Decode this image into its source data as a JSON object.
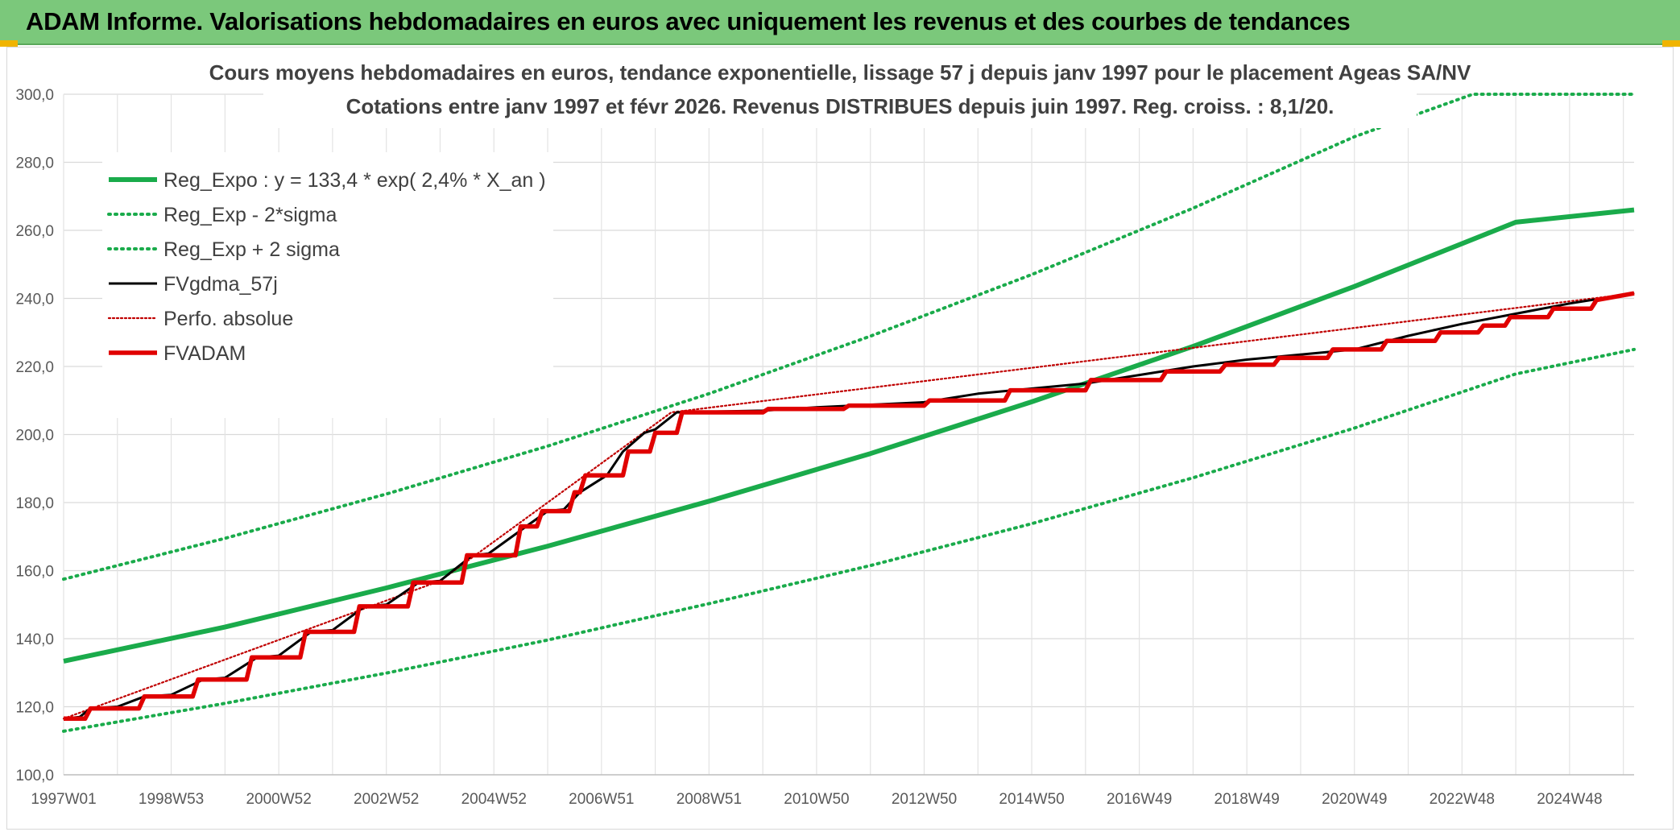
{
  "banner": {
    "title": "ADAM Informe. Valorisations hebdomadaires en euros avec uniquement les revenus et des courbes de tendances",
    "background": "#7bc87b",
    "accent": "#f0b400"
  },
  "chart_data": {
    "type": "line",
    "title": "Cours moyens hebdomadaires en euros, tendance exponentielle, lissage 57 j depuis janv 1997 pour le placement Ageas SA/NV",
    "subtitle": "Cotations entre janv 1997 et févr 2026. Revenus DISTRIBUES depuis juin 1997. Reg. croiss. : 8,1/20.",
    "xlabel": "",
    "ylabel": "",
    "ylim": [
      100,
      300
    ],
    "y_ticks": [
      "100,0",
      "120,0",
      "140,0",
      "160,0",
      "180,0",
      "200,0",
      "220,0",
      "240,0",
      "260,0",
      "280,0",
      "300,0"
    ],
    "xlim": [
      1997.0,
      2026.2
    ],
    "x_tick_labels": [
      "1997W01",
      "1998W53",
      "2000W52",
      "2002W52",
      "2004W52",
      "2006W51",
      "2008W51",
      "2010W50",
      "2012W50",
      "2014W50",
      "2016W49",
      "2018W49",
      "2020W49",
      "2022W48",
      "2024W48"
    ],
    "grid": true,
    "legend_position": "top-left",
    "series": [
      {
        "name": "Reg_Expo : y = 133,4 * exp( 2,4% *  X_an )",
        "color": "#1aab4b",
        "style": "solid-thick",
        "x": [
          1997.0,
          2000.0,
          2003.0,
          2006.0,
          2009.0,
          2012.0,
          2015.0,
          2018.0,
          2021.0,
          2024.0,
          2026.2
        ],
        "values": [
          133.4,
          143.4,
          154.9,
          167.2,
          180.4,
          194.4,
          209.6,
          225.9,
          243.5,
          262.4,
          266.0
        ]
      },
      {
        "name": "Reg_Exp - 2*sigma",
        "color": "#1aab4b",
        "style": "dotted",
        "x": [
          1997.0,
          2000.0,
          2003.0,
          2006.0,
          2009.0,
          2012.0,
          2015.0,
          2018.0,
          2021.0,
          2024.0,
          2026.2
        ],
        "values": [
          112.8,
          121.0,
          129.9,
          139.6,
          150.3,
          161.5,
          173.8,
          187.3,
          201.9,
          217.8,
          225.0
        ]
      },
      {
        "name": "Reg_Exp + 2 sigma",
        "color": "#1aab4b",
        "style": "dotted",
        "x": [
          1997.0,
          2000.0,
          2003.0,
          2006.0,
          2009.0,
          2012.0,
          2015.0,
          2018.0,
          2021.0,
          2023.2,
          2026.2
        ],
        "values": [
          157.5,
          169.5,
          182.5,
          196.6,
          212.0,
          228.9,
          247.0,
          266.5,
          287.5,
          300.0,
          300.0
        ]
      },
      {
        "name": "FVgdma_57j",
        "color": "#000000",
        "style": "solid-thin",
        "x": [
          1997.0,
          1997.3,
          1997.5,
          1998.0,
          1998.5,
          1999.0,
          1999.6,
          2000.0,
          2000.6,
          2001.0,
          2001.6,
          2002.0,
          2002.6,
          2003.0,
          2003.6,
          2004.0,
          2004.6,
          2004.9,
          2005.6,
          2006.0,
          2006.3,
          2006.6,
          2007.1,
          2007.4,
          2007.8,
          2008.0,
          2008.4,
          2010.0,
          2011.0,
          2013.0,
          2014.0,
          2016.0,
          2017.0,
          2018.0,
          2019.0,
          2021.0,
          2022.0,
          2023.0,
          2024.0,
          2025.0,
          2026.2
        ],
        "values": [
          116.5,
          117.0,
          119.5,
          120.0,
          123.0,
          123.5,
          128.0,
          128.5,
          134.5,
          135.0,
          142.0,
          142.5,
          149.5,
          150.0,
          156.5,
          157.0,
          164.5,
          165.0,
          173.0,
          177.5,
          178.0,
          183.0,
          188.0,
          195.0,
          200.5,
          201.5,
          206.5,
          207.0,
          208.0,
          209.5,
          212.0,
          215.0,
          217.5,
          220.0,
          222.0,
          225.0,
          229.0,
          232.5,
          235.5,
          238.5,
          241.5
        ]
      },
      {
        "name": "Perfo. absolue",
        "color": "#c00000",
        "style": "dotted",
        "x": [
          1997.0,
          2004.0,
          2008.3,
          2026.2
        ],
        "values": [
          116.5,
          157.0,
          206.5,
          241.5
        ]
      },
      {
        "name": "FVADAM",
        "color": "#e00000",
        "style": "solid-thick",
        "x": [
          1997.0,
          1997.4,
          1997.5,
          1998.4,
          1998.5,
          1999.4,
          1999.5,
          2000.4,
          2000.5,
          2001.4,
          2001.5,
          2002.4,
          2002.5,
          2003.4,
          2003.5,
          2004.4,
          2004.5,
          2005.4,
          2005.5,
          2005.8,
          2005.9,
          2006.4,
          2006.5,
          2006.6,
          2006.7,
          2007.4,
          2007.5,
          2007.9,
          2008.0,
          2008.4,
          2008.5,
          2010.0,
          2010.1,
          2011.5,
          2011.6,
          2013.0,
          2013.1,
          2014.5,
          2014.6,
          2016.0,
          2016.1,
          2017.4,
          2017.5,
          2018.5,
          2018.6,
          2019.5,
          2019.6,
          2020.5,
          2020.6,
          2021.5,
          2021.6,
          2022.5,
          2022.6,
          2023.3,
          2023.4,
          2023.8,
          2023.9,
          2024.6,
          2024.7,
          2025.4,
          2025.5,
          2026.2
        ],
        "values": [
          116.5,
          116.5,
          119.5,
          119.5,
          123.0,
          123.0,
          128.0,
          128.0,
          134.5,
          134.5,
          142.0,
          142.0,
          149.5,
          149.5,
          156.5,
          156.5,
          164.5,
          164.5,
          173.0,
          173.0,
          177.5,
          177.5,
          183.0,
          183.0,
          188.0,
          188.0,
          195.0,
          195.0,
          200.5,
          200.5,
          206.5,
          206.5,
          207.5,
          207.5,
          208.5,
          208.5,
          210.0,
          210.0,
          213.0,
          213.0,
          216.0,
          216.0,
          218.5,
          218.5,
          220.5,
          220.5,
          222.5,
          222.5,
          225.0,
          225.0,
          227.5,
          227.5,
          230.0,
          230.0,
          232.0,
          232.0,
          234.5,
          234.5,
          237.0,
          237.0,
          239.5,
          241.5
        ]
      }
    ]
  }
}
